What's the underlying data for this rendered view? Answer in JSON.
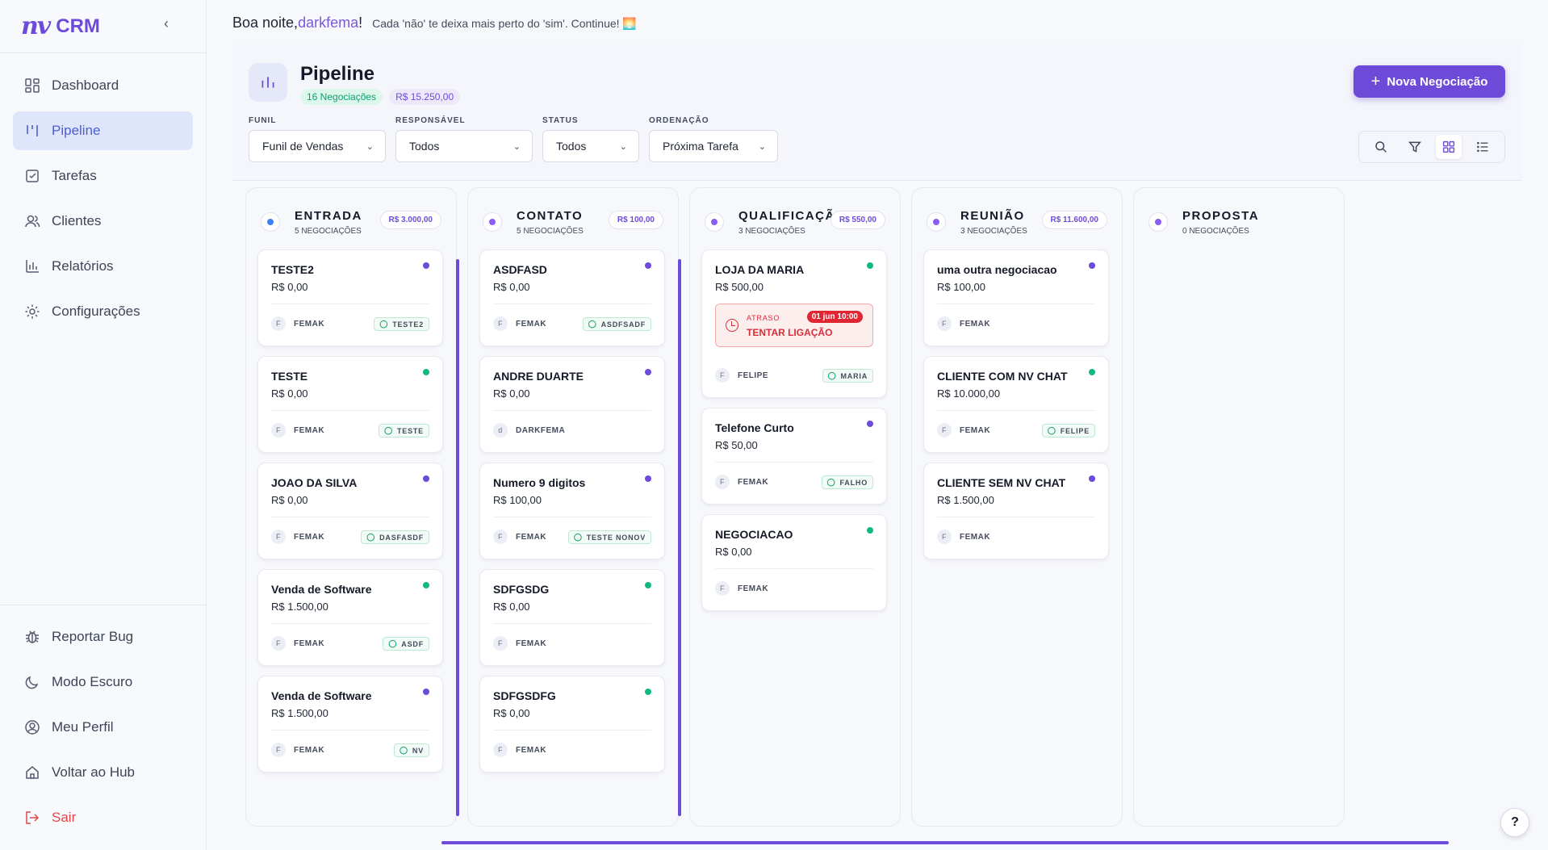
{
  "brand": {
    "logo": "nv",
    "name": "CRM"
  },
  "sidebar": {
    "items": [
      {
        "label": "Dashboard",
        "icon": "dashboard-icon",
        "active": false
      },
      {
        "label": "Pipeline",
        "icon": "pipeline-icon",
        "active": true
      },
      {
        "label": "Tarefas",
        "icon": "tasks-icon",
        "active": false
      },
      {
        "label": "Clientes",
        "icon": "users-icon",
        "active": false
      },
      {
        "label": "Relatórios",
        "icon": "bar-chart-icon",
        "active": false
      },
      {
        "label": "Configurações",
        "icon": "gear-icon",
        "active": false
      }
    ],
    "bottom": [
      {
        "label": "Reportar Bug",
        "icon": "bug-icon"
      },
      {
        "label": "Modo Escuro",
        "icon": "moon-icon"
      },
      {
        "label": "Meu Perfil",
        "icon": "profile-icon"
      },
      {
        "label": "Voltar ao Hub",
        "icon": "home-icon"
      },
      {
        "label": "Sair",
        "icon": "logout-icon"
      }
    ]
  },
  "greeting": {
    "prefix": "Boa noite, ",
    "user": "darkfema",
    "suffix": "!",
    "motto": "Cada 'não' te deixa mais perto do 'sim'. Continue! 🌅"
  },
  "header": {
    "title": "Pipeline",
    "deals_badge": "16 Negociações",
    "total_badge": "R$ 15.250,00",
    "new_button": "Nova Negociação"
  },
  "filters": [
    {
      "label": "FUNIL",
      "value": "Funil de Vendas"
    },
    {
      "label": "RESPONSÁVEL",
      "value": "Todos"
    },
    {
      "label": "STATUS",
      "value": "Todos"
    },
    {
      "label": "ORDENAÇÃO",
      "value": "Próxima Tarefa"
    }
  ],
  "colors": {
    "accent": "#6d4bd8",
    "green": "#10b981",
    "purple_dot": "#6d4bd8",
    "blue_dot": "#3b82f6",
    "danger": "#e02633"
  },
  "columns": [
    {
      "title": "ENTRADA",
      "count": "5 NEGOCIAÇÕES",
      "total": "R$ 3.000,00",
      "dot": "#3b82f6",
      "cards": [
        {
          "title": "TESTE2",
          "value": "R$ 0,00",
          "owner": "FEMAK",
          "avatar": "F",
          "contact": "TESTE2",
          "dot": "#6d4bd8"
        },
        {
          "title": "TESTE",
          "value": "R$ 0,00",
          "owner": "FEMAK",
          "avatar": "F",
          "contact": "TESTE",
          "dot": "#10b981"
        },
        {
          "title": "JOAO DA SILVA",
          "value": "R$ 0,00",
          "owner": "FEMAK",
          "avatar": "F",
          "contact": "DASFASDF",
          "dot": "#6d4bd8"
        },
        {
          "title": "Venda de Software",
          "value": "R$ 1.500,00",
          "owner": "FEMAK",
          "avatar": "F",
          "contact": "ASDF",
          "dot": "#10b981"
        },
        {
          "title": "Venda de Software",
          "value": "R$ 1.500,00",
          "owner": "FEMAK",
          "avatar": "F",
          "contact": "NV",
          "dot": "#6d4bd8"
        }
      ]
    },
    {
      "title": "CONTATO",
      "count": "5 NEGOCIAÇÕES",
      "total": "R$ 100,00",
      "dot": "#8b5cf6",
      "cards": [
        {
          "title": "ASDFASD",
          "value": "R$ 0,00",
          "owner": "FEMAK",
          "avatar": "F",
          "contact": "ASDFSADF",
          "dot": "#6d4bd8"
        },
        {
          "title": "ANDRE DUARTE",
          "value": "R$ 0,00",
          "owner": "DARKFEMA",
          "avatar": "d",
          "contact": "",
          "dot": "#6d4bd8"
        },
        {
          "title": "Numero 9 digitos",
          "value": "R$ 100,00",
          "owner": "FEMAK",
          "avatar": "F",
          "contact": "TESTE NONOV",
          "dot": "#6d4bd8"
        },
        {
          "title": "SDFGSDG",
          "value": "R$ 0,00",
          "owner": "FEMAK",
          "avatar": "F",
          "contact": "",
          "dot": "#10b981"
        },
        {
          "title": "SDFGSDFG",
          "value": "R$ 0,00",
          "owner": "FEMAK",
          "avatar": "F",
          "contact": "",
          "dot": "#10b981"
        }
      ]
    },
    {
      "title": "QUALIFICAÇÃO",
      "count": "3 NEGOCIAÇÕES",
      "total": "R$ 550,00",
      "dot": "#8b5cf6",
      "cards": [
        {
          "title": "LOJA DA MARIA",
          "value": "R$ 500,00",
          "owner": "FELIPE",
          "avatar": "F",
          "contact": "MARIA",
          "dot": "#10b981",
          "alert": {
            "status": "ATRASO",
            "action": "TENTAR LIGAÇÃO",
            "when": "01 jun 10:00"
          }
        },
        {
          "title": "Telefone Curto",
          "value": "R$ 50,00",
          "owner": "FEMAK",
          "avatar": "F",
          "contact": "FALHO",
          "dot": "#6d4bd8"
        },
        {
          "title": "NEGOCIACAO",
          "value": "R$ 0,00",
          "owner": "FEMAK",
          "avatar": "F",
          "contact": "",
          "dot": "#10b981"
        }
      ]
    },
    {
      "title": "REUNIÃO",
      "count": "3 NEGOCIAÇÕES",
      "total": "R$ 11.600,00",
      "dot": "#8b5cf6",
      "cards": [
        {
          "title": "uma outra negociacao",
          "value": "R$ 100,00",
          "owner": "FEMAK",
          "avatar": "F",
          "contact": "",
          "dot": "#6d4bd8"
        },
        {
          "title": "CLIENTE COM NV CHAT",
          "value": "R$ 10.000,00",
          "owner": "FEMAK",
          "avatar": "F",
          "contact": "FELIPE",
          "dot": "#10b981"
        },
        {
          "title": "CLIENTE SEM NV CHAT",
          "value": "R$ 1.500,00",
          "owner": "FEMAK",
          "avatar": "F",
          "contact": "",
          "dot": "#6d4bd8"
        }
      ]
    },
    {
      "title": "PROPOSTA",
      "count": "0 NEGOCIAÇÕES",
      "total": "",
      "dot": "#8b5cf6",
      "cards": []
    }
  ],
  "help": "?"
}
